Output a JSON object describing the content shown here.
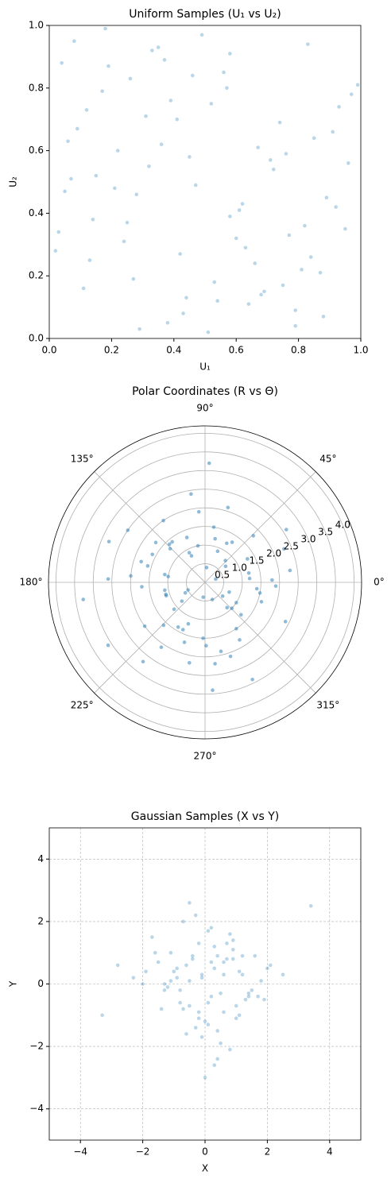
{
  "chart_data": [
    {
      "type": "scatter",
      "title": "Uniform Samples (U₁ vs U₂)",
      "xlabel": "U₁",
      "ylabel": "U₂",
      "color": "#1f77b4",
      "alpha": 0.3,
      "grid": false,
      "xlim": [
        0,
        1
      ],
      "ylim": [
        0,
        1
      ],
      "xticks": [
        {
          "value": 0,
          "label": "0.0"
        },
        0.2,
        0.4,
        0.6,
        0.8,
        {
          "value": 1,
          "label": "1.0"
        }
      ],
      "yticks": [
        {
          "value": 0,
          "label": "0.0"
        },
        0.2,
        0.4,
        0.6,
        0.8,
        {
          "value": 1,
          "label": "1.0"
        }
      ],
      "x": [
        0.12,
        0.87,
        0.45,
        0.33,
        0.68,
        0.05,
        0.91,
        0.24,
        0.56,
        0.79,
        0.15,
        0.42,
        0.97,
        0.61,
        0.29,
        0.74,
        0.08,
        0.53,
        0.36,
        0.82,
        0.19,
        0.64,
        0.47,
        0.93,
        0.02,
        0.71,
        0.38,
        0.26,
        0.58,
        0.85,
        0.11,
        0.49,
        0.77,
        0.31,
        0.66,
        0.04,
        0.89,
        0.22,
        0.54,
        0.95,
        0.17,
        0.43,
        0.72,
        0.35,
        0.81,
        0.09,
        0.62,
        0.27,
        0.99,
        0.51,
        0.14,
        0.76,
        0.39,
        0.84,
        0.21,
        0.58,
        0.06,
        0.69,
        0.46,
        0.92,
        0.32,
        0.63,
        0.18,
        0.88,
        0.41,
        0.75,
        0.03,
        0.57,
        0.28,
        0.83,
        0.13,
        0.67,
        0.44,
        0.96,
        0.25,
        0.52,
        0.79,
        0.37,
        0.07,
        0.6
      ],
      "y": [
        0.73,
        0.21,
        0.58,
        0.92,
        0.14,
        0.47,
        0.66,
        0.31,
        0.85,
        0.09,
        0.52,
        0.27,
        0.78,
        0.41,
        0.03,
        0.69,
        0.95,
        0.18,
        0.62,
        0.36,
        0.87,
        0.11,
        0.49,
        0.74,
        0.28,
        0.57,
        0.05,
        0.83,
        0.39,
        0.64,
        0.16,
        0.97,
        0.33,
        0.71,
        0.24,
        0.88,
        0.45,
        0.6,
        0.12,
        0.35,
        0.79,
        0.08,
        0.54,
        0.93,
        0.22,
        0.67,
        0.43,
        0.19,
        0.81,
        0.02,
        0.38,
        0.59,
        0.76,
        0.26,
        0.48,
        0.91,
        0.63,
        0.15,
        0.84,
        0.42,
        0.55,
        0.29,
        0.99,
        0.07,
        0.7,
        0.17,
        0.34,
        0.8,
        0.46,
        0.94,
        0.25,
        0.61,
        0.13,
        0.56,
        0.37,
        0.75,
        0.04,
        0.89,
        0.51,
        0.32
      ]
    },
    {
      "type": "polar",
      "title": "Polar Coordinates (R vs Θ)",
      "color": "#1f77b4",
      "alpha": 0.5,
      "grid": true,
      "rlim": [
        0,
        4.2
      ],
      "rticks": [
        0.5,
        {
          "value": 1,
          "label": "1.0"
        },
        1.5,
        {
          "value": 2,
          "label": "2.0"
        },
        2.5,
        {
          "value": 3,
          "label": "3.0"
        },
        3.5,
        {
          "value": 4,
          "label": "4.0"
        }
      ],
      "thetaticks": [
        {
          "value": 0,
          "label": "0°"
        },
        {
          "value": 45,
          "label": "45°"
        },
        {
          "value": 90,
          "label": "90°"
        },
        {
          "value": 135,
          "label": "135°"
        },
        {
          "value": 180,
          "label": "180°"
        },
        {
          "value": 225,
          "label": "225°"
        },
        {
          "value": 270,
          "label": "270°"
        },
        {
          "value": 315,
          "label": "315°"
        }
      ],
      "theta": [
        12,
        47,
        95,
        133,
        178,
        204,
        251,
        289,
        316,
        349,
        23,
        68,
        112,
        157,
        191,
        226,
        263,
        301,
        334,
        5,
        38,
        81,
        124,
        169,
        213,
        239,
        277,
        322,
        357,
        56,
        101,
        146,
        184,
        219,
        248,
        296,
        341,
        17,
        73,
        129,
        162,
        197,
        232,
        268,
        311,
        29,
        88,
        141,
        175,
        208,
        245,
        283,
        327,
        8,
        61,
        117,
        152,
        188,
        221,
        259,
        304,
        338,
        44,
        99,
        136,
        171,
        216,
        271,
        293,
        353,
        33,
        77,
        118,
        164,
        199,
        236,
        274,
        318,
        2,
        84
      ],
      "r": [
        1.2,
        0.8,
        1.9,
        1.4,
        2.6,
        0.5,
        1.7,
        2.1,
        1.0,
        1.5,
        2.3,
        0.9,
        1.3,
        2.8,
        1.1,
        1.6,
        0.4,
        1.8,
        2.4,
        1.2,
        0.7,
        1.5,
        2.0,
        1.1,
        3.1,
        1.4,
        2.2,
        0.6,
        1.9,
        1.3,
        1.0,
        2.5,
        1.7,
        0.8,
        1.2,
        2.9,
        1.6,
        0.3,
        2.1,
        1.4,
        1.8,
        1.1,
        2.7,
        1.5,
        0.9,
        1.3,
        3.2,
        1.7,
        2.0,
        0.6,
        1.4,
        1.9,
        1.0,
        2.3,
        1.2,
        0.8,
        1.6,
        3.3,
        1.1,
        2.2,
        1.5,
        0.7,
        1.8,
        2.4,
        1.3,
        1.0,
        2.0,
        1.7,
        0.5,
        1.4,
        2.6,
        1.2,
        0.9,
        1.6,
        1.1,
        2.1,
        2.9,
        1.3,
        1.8,
        0.4
      ]
    },
    {
      "type": "scatter",
      "title": "Gaussian Samples (X vs Y)",
      "xlabel": "X",
      "ylabel": "Y",
      "color": "#1f77b4",
      "alpha": 0.3,
      "grid": true,
      "xlim": [
        -5,
        5
      ],
      "ylim": [
        -5,
        5
      ],
      "xticks": [
        {
          "value": -4,
          "label": "−4"
        },
        {
          "value": -2,
          "label": "−2"
        },
        0,
        2,
        4
      ],
      "yticks": [
        {
          "value": -4,
          "label": "−4"
        },
        {
          "value": -2,
          "label": "−2"
        },
        0,
        2,
        4
      ],
      "x": [
        0.3,
        -0.8,
        1.2,
        -0.2,
        0.6,
        -1.5,
        0.1,
        0.9,
        -0.5,
        1.7,
        -1.1,
        0.4,
        -0.1,
        2.1,
        -0.7,
        0.8,
        -1.9,
        0.2,
        1.4,
        -0.4,
        0.0,
        -1.3,
        0.7,
        1.0,
        -0.9,
        0.5,
        -2.3,
        1.6,
        -0.3,
        0.2,
        1.1,
        -0.6,
        0.9,
        -1.2,
        0.4,
        2.5,
        -0.2,
        -1.7,
        0.6,
        1.3,
        -0.5,
        0.1,
        -1.0,
        1.8,
        -0.8,
        0.3,
        -0.1,
        0.7,
        -2.0,
        1.5,
        0.0,
        -0.4,
        1.2,
        -1.4,
        0.8,
        -0.3,
        2.0,
        -0.9,
        0.5,
        -1.6,
        0.2,
        1.0,
        -0.7,
        0.6,
        -2.8,
        1.4,
        -0.2,
        0.3,
        -1.1,
        0.9,
        3.4,
        -0.5,
        0.1,
        -1.3,
        1.1,
        -0.6,
        0.4,
        1.9,
        -0.1,
        -3.3
      ],
      "y": [
        0.5,
        -0.2,
        0.9,
        -1.1,
        0.3,
        0.7,
        -0.6,
        1.4,
        0.1,
        -0.4,
        1.0,
        -1.5,
        0.2,
        0.6,
        -0.8,
        -2.1,
        0.4,
        1.8,
        -0.3,
        0.8,
        -1.2,
        0.0,
        1.3,
        -0.7,
        0.5,
        -1.9,
        0.2,
        0.9,
        2.2,
        -0.4,
        -1.0,
        0.6,
        1.1,
        -0.1,
        -2.4,
        0.3,
        -0.9,
        1.5,
        0.7,
        -0.5,
        2.6,
        -1.3,
        0.4,
        0.1,
        -0.6,
        1.2,
        -1.7,
        0.8,
        0.0,
        -0.2,
        -3.0,
        0.9,
        0.3,
        -0.8,
        1.6,
        -1.4,
        0.5,
        0.2,
        -0.3,
        1.0,
        0.7,
        -1.1,
        2.0,
        -0.9,
        0.6,
        -0.4,
        1.3,
        -2.6,
        0.1,
        0.8,
        2.5,
        -0.7,
        1.7,
        -0.2,
        0.4,
        -1.6,
        0.9,
        -0.5,
        0.3,
        -1.0
      ]
    }
  ]
}
